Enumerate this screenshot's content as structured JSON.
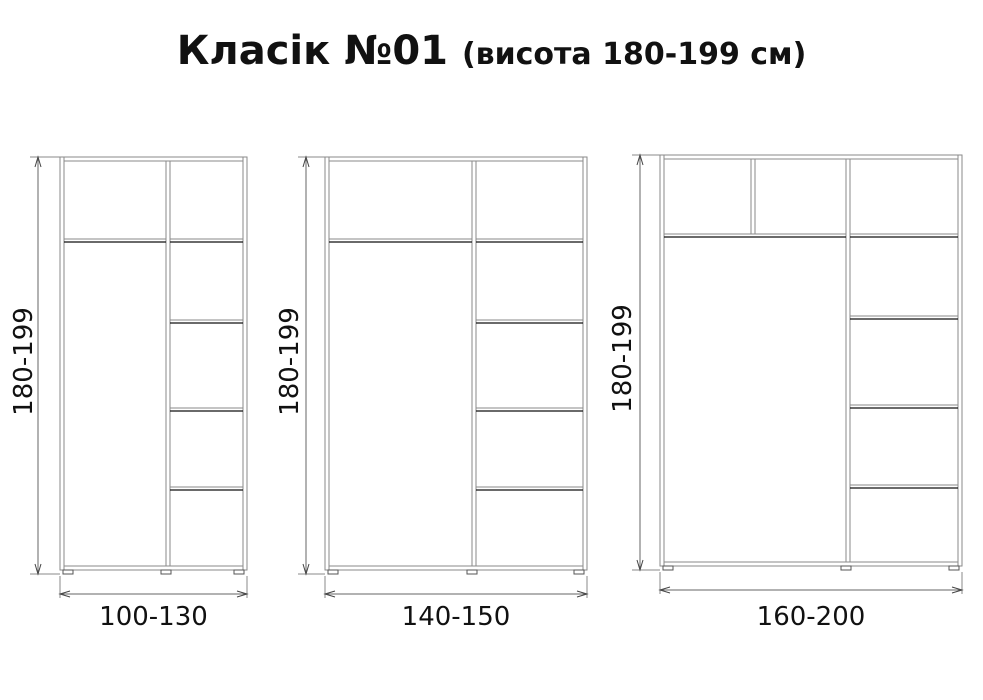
{
  "title": {
    "main": "Класік №01",
    "subtitle": "(висота 180-199 см)"
  },
  "wardrobes": [
    {
      "height_label": "180-199",
      "width_label": "100-130"
    },
    {
      "height_label": "180-199",
      "width_label": "140-150"
    },
    {
      "height_label": "180-199",
      "width_label": "160-200"
    }
  ],
  "colors": {
    "line": "#8a8a8a",
    "shelf_edge": "#111111",
    "text": "#111111"
  }
}
